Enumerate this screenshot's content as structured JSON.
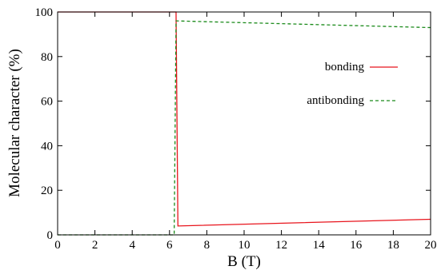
{
  "chart_data": {
    "type": "line",
    "title": "",
    "xlabel": "B (T)",
    "ylabel": "Molecular character (%)",
    "xlim": [
      0,
      20
    ],
    "ylim": [
      0,
      100
    ],
    "xticks": [
      "0",
      "2",
      "4",
      "6",
      "8",
      "10",
      "12",
      "14",
      "16",
      "18",
      "20"
    ],
    "yticks": [
      "0",
      "20",
      "40",
      "60",
      "80",
      "100"
    ],
    "grid": false,
    "legend_position": "right",
    "series": [
      {
        "name": "bonding",
        "color": "#e8141c",
        "dash": "solid",
        "x": [
          0,
          6.35,
          6.45,
          20
        ],
        "y": [
          100,
          100,
          4,
          7
        ]
      },
      {
        "name": "antibonding",
        "color": "#1a8a1a",
        "dash": "dashed",
        "x": [
          0,
          6.25,
          6.35,
          20
        ],
        "y": [
          0,
          0,
          96,
          93
        ]
      }
    ]
  }
}
